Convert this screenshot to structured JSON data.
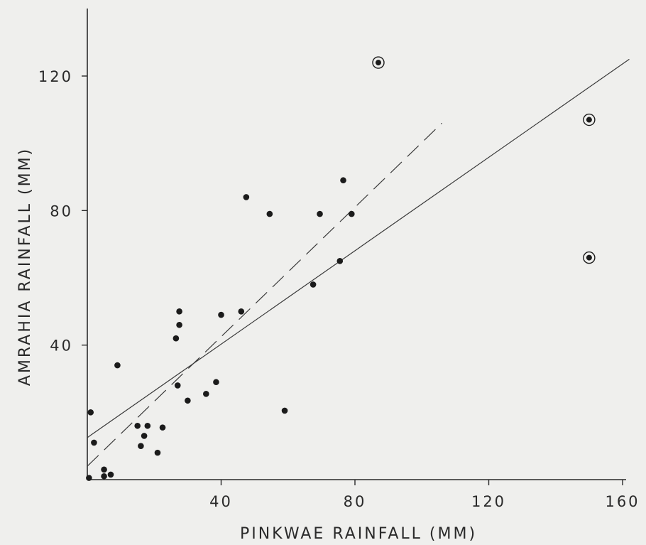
{
  "chart_data": {
    "type": "scatter",
    "title": "",
    "xlabel": "PINKWAE RAINFALL (MM)",
    "ylabel": "AMRAHIA RAINFALL (MM)",
    "xlim": [
      0,
      160
    ],
    "ylim": [
      0,
      140
    ],
    "x_ticks": [
      40,
      80,
      120,
      160
    ],
    "y_ticks": [
      40,
      80,
      120
    ],
    "x_tick_labels": [
      "40",
      "80",
      "120",
      "160"
    ],
    "y_tick_labels": [
      "40",
      "80",
      "120"
    ],
    "grid": false,
    "series": [
      {
        "values_xy": [
          [
            1,
            20
          ],
          [
            2,
            11
          ],
          [
            0.5,
            0.5
          ],
          [
            5,
            3
          ],
          [
            5,
            1
          ],
          [
            7,
            1.5
          ],
          [
            9,
            34
          ],
          [
            15,
            16
          ],
          [
            16,
            10
          ],
          [
            17,
            13
          ],
          [
            18,
            16
          ],
          [
            21,
            8
          ],
          [
            22.5,
            15.5
          ],
          [
            26.5,
            42
          ],
          [
            27,
            28
          ],
          [
            27.5,
            46
          ],
          [
            27.5,
            50
          ],
          [
            30,
            23.5
          ],
          [
            35.5,
            25.5
          ],
          [
            38.5,
            29
          ],
          [
            40,
            49
          ],
          [
            46,
            50
          ],
          [
            47.5,
            84
          ],
          [
            54.5,
            79
          ],
          [
            59,
            20.5
          ],
          [
            67.5,
            58
          ],
          [
            69.5,
            79
          ],
          [
            75.5,
            65
          ],
          [
            76.5,
            89
          ],
          [
            79,
            79
          ]
        ]
      },
      {
        "marker": "circled",
        "values_xy": [
          [
            87,
            124
          ],
          [
            150,
            107
          ],
          [
            150,
            66
          ]
        ]
      }
    ],
    "fit_lines": [
      {
        "style": "solid",
        "from": [
          0,
          12.5
        ],
        "to": [
          162,
          125
        ]
      },
      {
        "style": "dashed",
        "from": [
          0,
          4
        ],
        "to": [
          106,
          106
        ]
      }
    ]
  }
}
